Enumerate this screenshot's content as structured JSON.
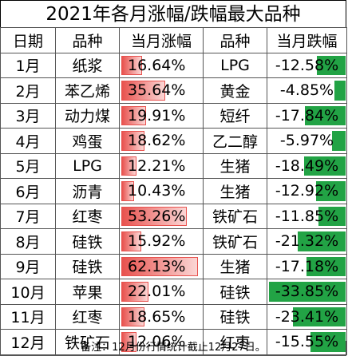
{
  "title": "2021年各月涨幅/跌幅最大品种",
  "headers": [
    "日期",
    "品种",
    "当月涨幅",
    "品种",
    "当月跌幅"
  ],
  "rows": [
    {
      "month": "1月",
      "up_name": "纸浆",
      "up_val": "16.64%",
      "up_pct": 16.64,
      "dn_name": "LPG",
      "dn_val": "-12.58%",
      "dn_pct": 12.58
    },
    {
      "month": "2月",
      "up_name": "苯乙烯",
      "up_val": "35.64%",
      "up_pct": 35.64,
      "dn_name": "黄金",
      "dn_val": "-4.85%",
      "dn_pct": 4.85
    },
    {
      "month": "3月",
      "up_name": "动力煤",
      "up_val": "19.91%",
      "up_pct": 19.91,
      "dn_name": "短纤",
      "dn_val": "-17.84%",
      "dn_pct": 17.84
    },
    {
      "month": "4月",
      "up_name": "鸡蛋",
      "up_val": "18.62%",
      "up_pct": 18.62,
      "dn_name": "乙二醇",
      "dn_val": "-5.97%",
      "dn_pct": 5.97
    },
    {
      "month": "5月",
      "up_name": "LPG",
      "up_val": "12.21%",
      "up_pct": 12.21,
      "dn_name": "生猪",
      "dn_val": "-18.49%",
      "dn_pct": 18.49
    },
    {
      "month": "6月",
      "up_name": "沥青",
      "up_val": "10.43%",
      "up_pct": 10.43,
      "dn_name": "生猪",
      "dn_val": "-12.92%",
      "dn_pct": 12.92
    },
    {
      "month": "7月",
      "up_name": "红枣",
      "up_val": "53.26%",
      "up_pct": 53.26,
      "dn_name": "铁矿石",
      "dn_val": "-11.85%",
      "dn_pct": 11.85
    },
    {
      "month": "8月",
      "up_name": "硅铁",
      "up_val": "15.92%",
      "up_pct": 15.92,
      "dn_name": "铁矿石",
      "dn_val": "-21.32%",
      "dn_pct": 21.32
    },
    {
      "month": "9月",
      "up_name": "硅铁",
      "up_val": "62.13%",
      "up_pct": 62.13,
      "dn_name": "生猪",
      "dn_val": "-17.18%",
      "dn_pct": 17.18
    },
    {
      "month": "10月",
      "up_name": "苹果",
      "up_val": "22.01%",
      "up_pct": 22.01,
      "dn_name": "硅铁",
      "dn_val": "-33.85%",
      "dn_pct": 33.85
    },
    {
      "month": "11月",
      "up_name": "红枣",
      "up_val": "18.65%",
      "up_pct": 18.65,
      "dn_name": "硅铁",
      "dn_val": "-23.41%",
      "dn_pct": 23.41
    },
    {
      "month": "12月",
      "up_name": "铁矿石",
      "up_val": "12.06%",
      "up_pct": 12.06,
      "dn_name": "红枣",
      "dn_val": "-15.55%",
      "dn_pct": 15.55
    }
  ],
  "up_max": 62.13,
  "dn_max": 33.85,
  "footer": "备注：12月份行情统计截止12月27日。",
  "colors": {
    "up_bar": "#e8524e",
    "dn_bar": "#22a345"
  }
}
